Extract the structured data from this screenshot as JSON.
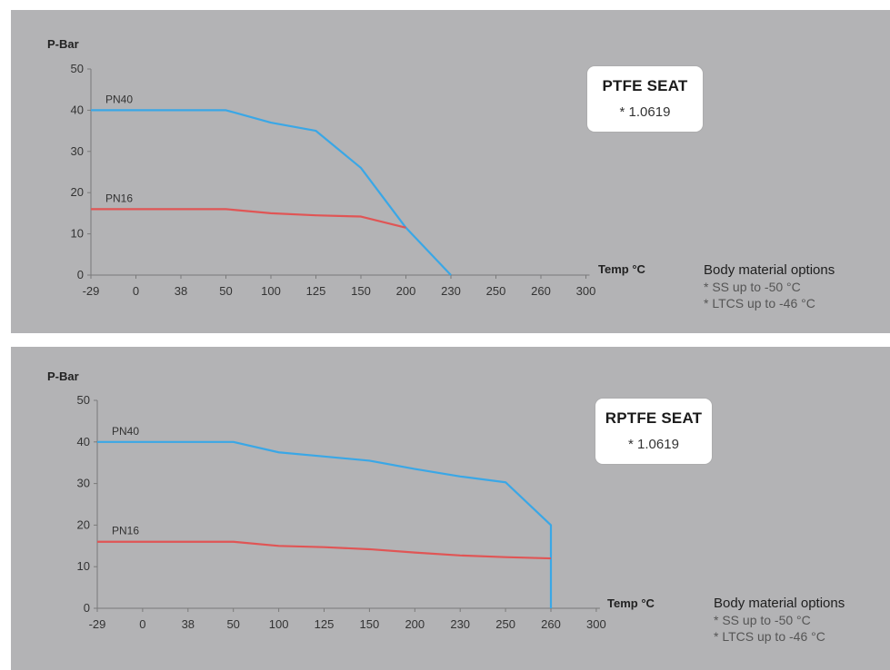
{
  "chart_data": [
    {
      "type": "line",
      "ylabel": "P-Bar",
      "xlabel": "Temp °C",
      "categories": [
        "-29",
        "0",
        "38",
        "50",
        "100",
        "125",
        "150",
        "200",
        "230",
        "250",
        "260",
        "300"
      ],
      "yticks": [
        0,
        10,
        20,
        30,
        40,
        50
      ],
      "ylim": [
        0,
        50
      ],
      "series": [
        {
          "name": "PN40",
          "color": "#3aa7e6",
          "points": [
            [
              0,
              40
            ],
            [
              3,
              40
            ],
            [
              4,
              37
            ],
            [
              5,
              35
            ],
            [
              6,
              26
            ],
            [
              7,
              11.5
            ],
            [
              8,
              0
            ]
          ]
        },
        {
          "name": "PN16",
          "color": "#e05555",
          "points": [
            [
              0,
              16
            ],
            [
              3,
              16
            ],
            [
              4,
              15
            ],
            [
              5,
              14.5
            ],
            [
              6,
              14.2
            ],
            [
              7,
              11.5
            ]
          ]
        }
      ],
      "seat_box": {
        "title": "PTFE SEAT",
        "material": "* 1.0619"
      },
      "body_material": {
        "title": "Body material options",
        "items": [
          "* SS up to -50 °C",
          "* LTCS up to -46 °C"
        ]
      }
    },
    {
      "type": "line",
      "ylabel": "P-Bar",
      "xlabel": "Temp °C",
      "categories": [
        "-29",
        "0",
        "38",
        "50",
        "100",
        "125",
        "150",
        "200",
        "230",
        "250",
        "260",
        "300"
      ],
      "yticks": [
        0,
        10,
        20,
        30,
        40,
        50
      ],
      "ylim": [
        0,
        50
      ],
      "series": [
        {
          "name": "PN40",
          "color": "#3aa7e6",
          "points": [
            [
              0,
              40
            ],
            [
              3,
              40
            ],
            [
              4,
              37.5
            ],
            [
              5,
              36.5
            ],
            [
              6,
              35.5
            ],
            [
              7,
              33.5
            ],
            [
              8,
              31.7
            ],
            [
              9,
              30.3
            ],
            [
              10,
              20
            ],
            [
              10,
              0
            ]
          ]
        },
        {
          "name": "PN16",
          "color": "#e05555",
          "points": [
            [
              0,
              16
            ],
            [
              3,
              16
            ],
            [
              4,
              15
            ],
            [
              5,
              14.7
            ],
            [
              6,
              14.2
            ],
            [
              7,
              13.4
            ],
            [
              8,
              12.7
            ],
            [
              9,
              12.3
            ],
            [
              10,
              12
            ]
          ]
        }
      ],
      "seat_box": {
        "title": "RPTFE SEAT",
        "material": "* 1.0619"
      },
      "body_material": {
        "title": "Body material options",
        "items": [
          "* SS up to -50 °C",
          "* LTCS up to -46 °C"
        ]
      }
    }
  ]
}
